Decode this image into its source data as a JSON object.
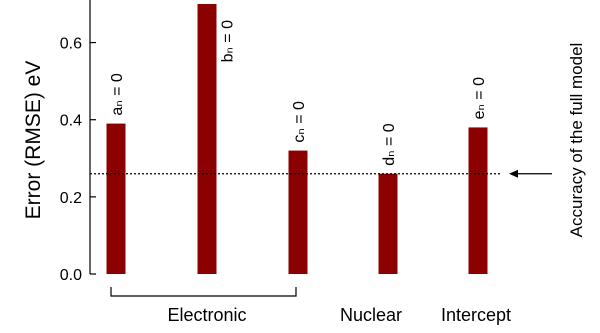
{
  "chart_data": {
    "type": "bar",
    "categories": [
      "aₙ = 0",
      "bₙ = 0",
      "cₙ = 0",
      "dₙ = 0",
      "eₙ = 0"
    ],
    "values": [
      0.39,
      0.7,
      0.32,
      0.26,
      0.38
    ],
    "ylabel": "Error (RMSE)  eV",
    "ylim": [
      0,
      0.7
    ],
    "yticks": [
      "0.0",
      "0.2",
      "0.4",
      "0.6"
    ],
    "ytick_values": [
      0,
      0.2,
      0.4,
      0.6
    ],
    "bar_color": "#8b0000",
    "groups": [
      {
        "label": "Electronic",
        "bracket": true
      },
      {
        "label": "Nuclear",
        "bracket": false
      },
      {
        "label": "Intercept",
        "bracket": false
      }
    ],
    "reference_line": {
      "value": 0.26,
      "label": "Accuracy of the full model",
      "style": "dotted"
    },
    "grid": false
  }
}
